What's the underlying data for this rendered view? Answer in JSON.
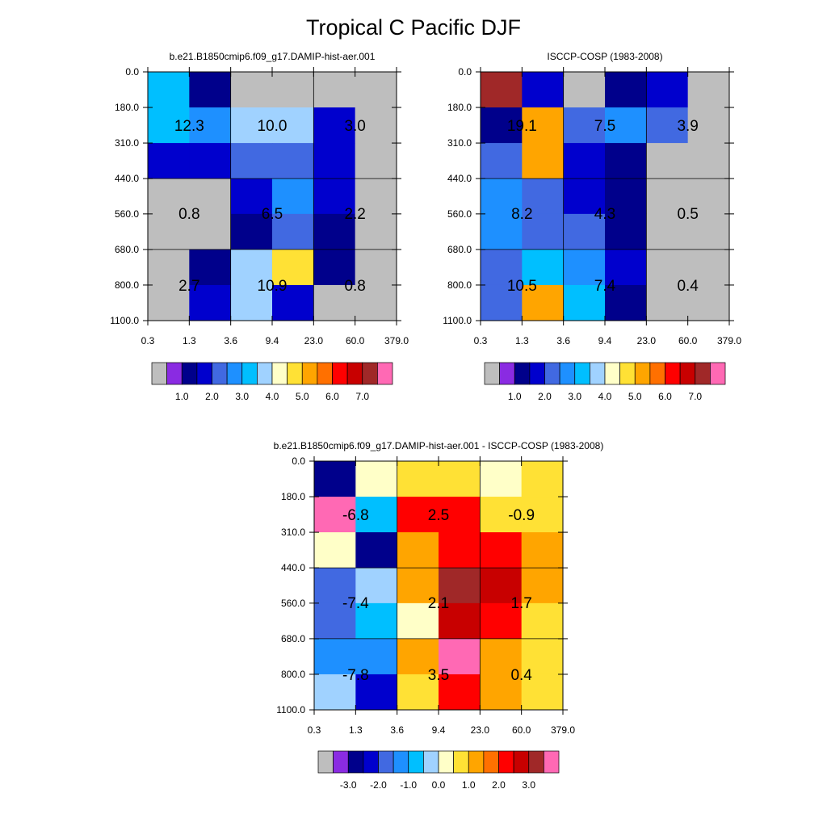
{
  "title": "Tropical C Pacific DJF",
  "chart_data": [
    {
      "type": "heatmap",
      "panel": "model",
      "title": "b.e21.B1850cmip6.f09_g17.DAMIP-hist-aer.001",
      "x_ticks": [
        "0.3",
        "1.3",
        "3.6",
        "9.4",
        "23.0",
        "60.0",
        "379.0"
      ],
      "y_ticks": [
        "0.0",
        "180.0",
        "310.0",
        "440.0",
        "560.0",
        "680.0",
        "800.0",
        "1100.0"
      ],
      "cells": [
        [
          6,
          2,
          0,
          0,
          0,
          0
        ],
        [
          6,
          5,
          7,
          7,
          3,
          0
        ],
        [
          3,
          3,
          4,
          4,
          3,
          0
        ],
        [
          0,
          0,
          3,
          5,
          3,
          0
        ],
        [
          0,
          0,
          2,
          4,
          2,
          0
        ],
        [
          0,
          2,
          7,
          9,
          2,
          0
        ],
        [
          0,
          3,
          7,
          3,
          0,
          0
        ]
      ],
      "box_values": [
        [
          "12.3",
          "10.0",
          "3.0"
        ],
        [
          "0.8",
          "6.5",
          "2.2"
        ],
        [
          "2.7",
          "10.9",
          "0.8"
        ]
      ],
      "colorbar_labels": [
        "1.0",
        "2.0",
        "3.0",
        "4.0",
        "5.0",
        "6.0",
        "7.0"
      ]
    },
    {
      "type": "heatmap",
      "panel": "observations",
      "title": "ISCCP-COSP (1983-2008)",
      "x_ticks": [
        "0.3",
        "1.3",
        "3.6",
        "9.4",
        "23.0",
        "60.0",
        "379.0"
      ],
      "y_ticks": [
        "0.0",
        "180.0",
        "310.0",
        "440.0",
        "560.0",
        "680.0",
        "800.0",
        "1100.0"
      ],
      "cells": [
        [
          14,
          3,
          0,
          2,
          3,
          0
        ],
        [
          2,
          10,
          4,
          5,
          4,
          0
        ],
        [
          4,
          10,
          3,
          2,
          0,
          0
        ],
        [
          5,
          4,
          3,
          2,
          0,
          0
        ],
        [
          5,
          4,
          4,
          2,
          0,
          0
        ],
        [
          4,
          6,
          5,
          3,
          0,
          0
        ],
        [
          4,
          10,
          6,
          2,
          0,
          0
        ]
      ],
      "box_values": [
        [
          "19.1",
          "7.5",
          "3.9"
        ],
        [
          "8.2",
          "4.3",
          "0.5"
        ],
        [
          "10.5",
          "7.4",
          "0.4"
        ]
      ],
      "colorbar_labels": [
        "1.0",
        "2.0",
        "3.0",
        "4.0",
        "5.0",
        "6.0",
        "7.0"
      ]
    },
    {
      "type": "heatmap",
      "panel": "difference",
      "title": "b.e21.B1850cmip6.f09_g17.DAMIP-hist-aer.001 - ISCCP-COSP (1983-2008)",
      "x_ticks": [
        "0.3",
        "1.3",
        "3.6",
        "9.4",
        "23.0",
        "60.0",
        "379.0"
      ],
      "y_ticks": [
        "0.0",
        "180.0",
        "310.0",
        "440.0",
        "560.0",
        "680.0",
        "800.0",
        "1100.0"
      ],
      "cells": [
        [
          2,
          8,
          9,
          9,
          8,
          9
        ],
        [
          15,
          6,
          12,
          12,
          9,
          9
        ],
        [
          8,
          2,
          10,
          12,
          12,
          10
        ],
        [
          4,
          7,
          10,
          14,
          13,
          10
        ],
        [
          4,
          6,
          8,
          13,
          12,
          9
        ],
        [
          5,
          5,
          10,
          15,
          10,
          9
        ],
        [
          7,
          3,
          9,
          12,
          10,
          9
        ]
      ],
      "box_values": [
        [
          "-6.8",
          "2.5",
          "-0.9"
        ],
        [
          "-7.4",
          "2.1",
          "1.7"
        ],
        [
          "-7.8",
          "3.5",
          "0.4"
        ]
      ],
      "colorbar_labels": [
        "-3.0",
        "-2.0",
        "-1.0",
        "0.0",
        "1.0",
        "2.0",
        "3.0"
      ]
    }
  ],
  "palette": [
    "#bebebe",
    "#8a2be2",
    "#00008b",
    "#0000cd",
    "#4169e1",
    "#1e90ff",
    "#00bfff",
    "#a0d2ff",
    "#ffffc8",
    "#ffe135",
    "#ffa500",
    "#ff7000",
    "#ff0000",
    "#c80000",
    "#a02828",
    "#ff69b4"
  ]
}
